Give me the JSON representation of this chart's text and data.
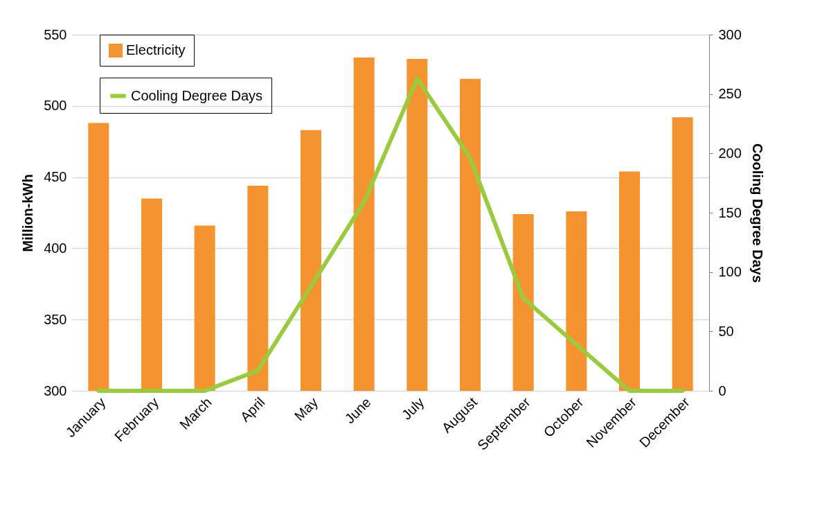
{
  "chart_data": {
    "type": "bar",
    "ylabel": "Million-kWh",
    "y2label": "Cooling Degree Days",
    "categories": [
      "January",
      "February",
      "March",
      "April",
      "May",
      "June",
      "July",
      "August",
      "September",
      "October",
      "November",
      "December"
    ],
    "series": [
      {
        "name": "Electricity",
        "color": "#f59331",
        "values": [
          488,
          435,
          416,
          444,
          483,
          534,
          533,
          519,
          424,
          426,
          454,
          492
        ]
      },
      {
        "name": "Cooling Degree Days",
        "type": "line",
        "axis": "y2",
        "color": "#9bca3e",
        "values": [
          0,
          0,
          0,
          17,
          88,
          159,
          263,
          196,
          78,
          39,
          0,
          0
        ]
      }
    ],
    "ylim": [
      300,
      550
    ],
    "yticks": [
      300,
      350,
      400,
      450,
      500,
      550
    ],
    "y2lim": [
      0,
      300
    ],
    "y2ticks": [
      0,
      50,
      100,
      150,
      200,
      250,
      300
    ],
    "grid": "y",
    "legend": "top left",
    "marker": "none",
    "line_style": "solid"
  }
}
